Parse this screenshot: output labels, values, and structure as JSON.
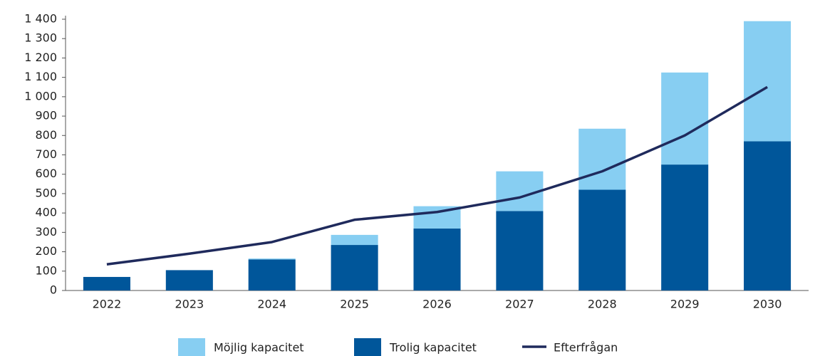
{
  "chart_data": {
    "type": "bar",
    "categories": [
      "2022",
      "2023",
      "2024",
      "2025",
      "2026",
      "2027",
      "2028",
      "2029",
      "2030"
    ],
    "stacked": true,
    "series": [
      {
        "name": "Möjlig kapacitet",
        "color": "#87cef2",
        "type": "bar",
        "values": [
          0,
          0,
          5,
          52,
          115,
          205,
          315,
          475,
          620
        ]
      },
      {
        "name": "Trolig kapacitet",
        "color": "#00569a",
        "type": "bar",
        "values": [
          70,
          105,
          160,
          235,
          320,
          410,
          520,
          650,
          770
        ]
      },
      {
        "name": "Efterfrågan",
        "color": "#1f2a5c",
        "type": "line",
        "values": [
          135,
          190,
          250,
          365,
          405,
          480,
          615,
          800,
          1050
        ]
      }
    ],
    "ylim": [
      0,
      1400
    ],
    "yticks": [
      0,
      100,
      200,
      300,
      400,
      500,
      600,
      700,
      800,
      900,
      {
        "value": 1000,
        "label": "1 000"
      },
      {
        "value": 1100,
        "label": "1 100"
      },
      {
        "value": 1200,
        "label": "1 200"
      },
      {
        "value": 1300,
        "label": "1 300"
      },
      {
        "value": 1400,
        "label": "1 400"
      }
    ],
    "legend": "bottom"
  }
}
